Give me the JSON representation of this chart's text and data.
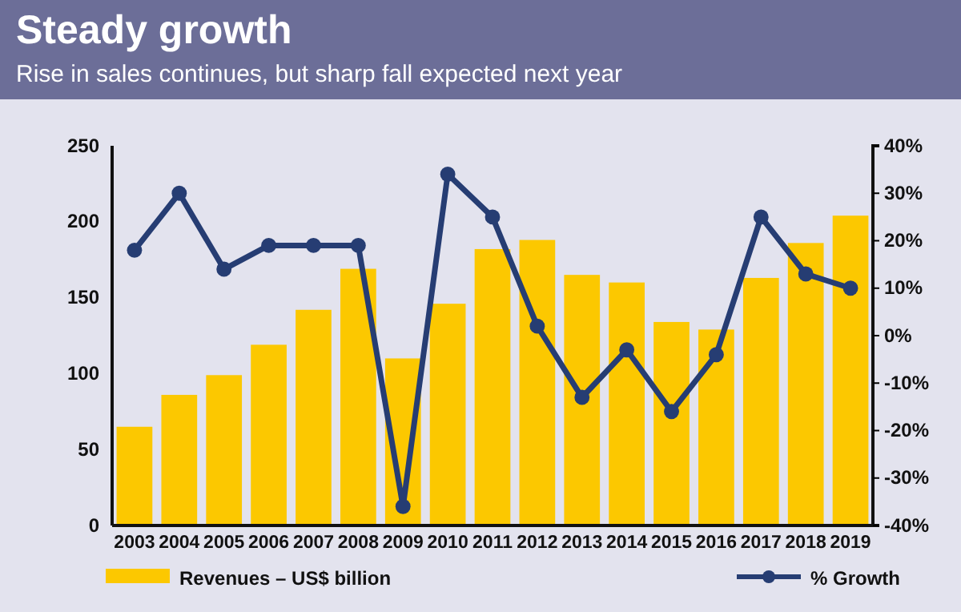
{
  "chart_data": {
    "type": "bar",
    "title": "Steady growth",
    "subtitle": "Rise in sales continues, but sharp fall expected next year",
    "categories": [
      "2003",
      "2004",
      "2005",
      "2006",
      "2007",
      "2008",
      "2009",
      "2010",
      "2011",
      "2012",
      "2013",
      "2014",
      "2015",
      "2016",
      "2017",
      "2018",
      "2019"
    ],
    "series": [
      {
        "name": "Revenues – US$ billion",
        "color": "#fcc800",
        "values": [
          65,
          86,
          99,
          119,
          142,
          169,
          110,
          146,
          182,
          188,
          165,
          160,
          134,
          129,
          163,
          186,
          204
        ]
      },
      {
        "name": "% Growth",
        "type": "line",
        "axis": "y2",
        "color": "#263d73",
        "values": [
          18,
          30,
          14,
          19,
          19,
          19,
          -36,
          34,
          25,
          2,
          -13,
          -3,
          -16,
          -4,
          25,
          13,
          10
        ]
      }
    ],
    "ylim": [
      0,
      250
    ],
    "yticks": [
      0,
      50,
      100,
      150,
      200,
      250
    ],
    "y2lim": [
      -40,
      40
    ],
    "y2ticks": [
      {
        "value": -40,
        "label": "-40%"
      },
      {
        "value": -30,
        "label": "-30%"
      },
      {
        "value": -20,
        "label": "-20%"
      },
      {
        "value": -10,
        "label": "-10%"
      },
      {
        "value": 0,
        "label": "0%"
      },
      {
        "value": 10,
        "label": "10%"
      },
      {
        "value": 20,
        "label": "20%"
      },
      {
        "value": 30,
        "label": "30%"
      },
      {
        "value": 40,
        "label": "40%"
      }
    ],
    "marker": "circle",
    "legend": "bottom",
    "grid": false
  }
}
